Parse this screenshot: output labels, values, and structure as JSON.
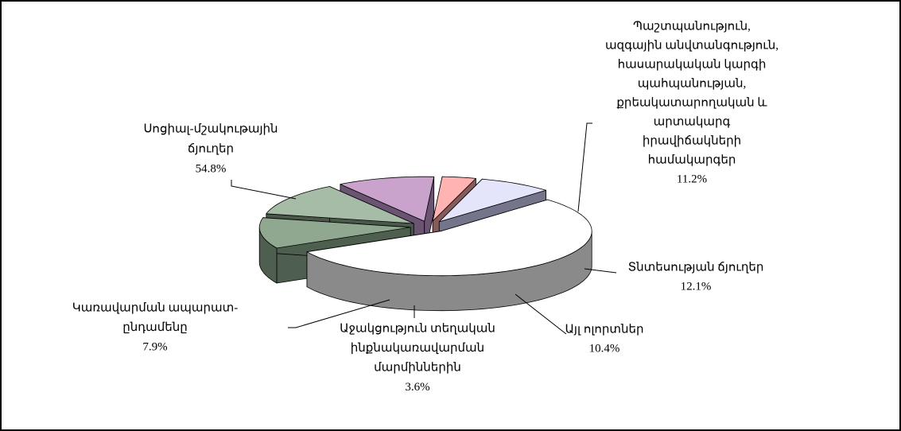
{
  "chart_data": {
    "type": "pie",
    "categories": [
      [
        "Սոցիալ-մշակութային",
        "ճյուղեր"
      ],
      [
        "Պաշտպանություն,",
        "ազգային անվտանգություն,",
        "հասարակական կարգի",
        "պահպանության,",
        "քրեակատարողական և",
        "արտակարգ",
        "իրավիճակների",
        "համակարգեր"
      ],
      [
        "Տնտեսության ճյուղեր"
      ],
      [
        "Այլ ոլորտներ"
      ],
      [
        "Աջակցություն տեղական",
        "ինքնակառավարման",
        "մարմիններին"
      ],
      [
        "Կառավարման ապարատ-",
        "ընդամենը"
      ]
    ],
    "values": [
      54.8,
      11.2,
      12.1,
      10.4,
      3.6,
      7.9
    ],
    "value_labels": [
      "54.8%",
      "11.2%",
      "12.1%",
      "10.4%",
      "3.6%",
      "7.9%"
    ],
    "colors": [
      "#ffffff",
      "#8fa88f",
      "#a6bca6",
      "#c9a3cc",
      "#ffb3b3",
      "#e4e4fa"
    ],
    "side_colors": [
      "#8a8a8a",
      "#4f5f4f",
      "#4a584a",
      "#6a5472",
      "#8a5a5a",
      "#74748a"
    ]
  }
}
